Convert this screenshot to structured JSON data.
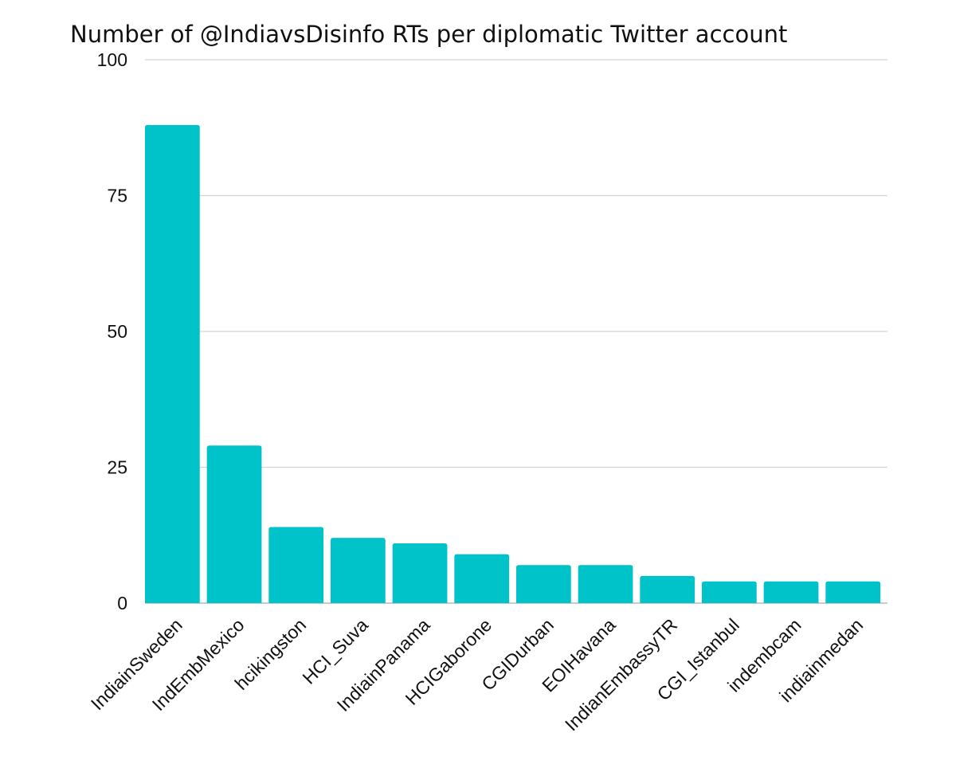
{
  "chart_data": {
    "type": "bar",
    "title": "Number of @IndiavsDisinfo RTs per diplomatic Twitter account",
    "xlabel": "",
    "ylabel": "",
    "ylim": [
      0,
      100
    ],
    "yticks": [
      0,
      25,
      50,
      75,
      100
    ],
    "grid": true,
    "legend": "none",
    "bar_color": "#00C2C9",
    "categories": [
      "IndiainSweden",
      "IndEmbMexico",
      "hcikingston",
      "HCI_Suva",
      "IndiainPanama",
      "HCIGaborone",
      "CGIDurban",
      "EOIHavana",
      "IndianEmbassyTR",
      "CGI_Istanbul",
      "indembcam",
      "indiainmedan"
    ],
    "values": [
      88,
      29,
      14,
      12,
      11,
      9,
      7,
      7,
      5,
      4,
      4,
      4
    ]
  }
}
